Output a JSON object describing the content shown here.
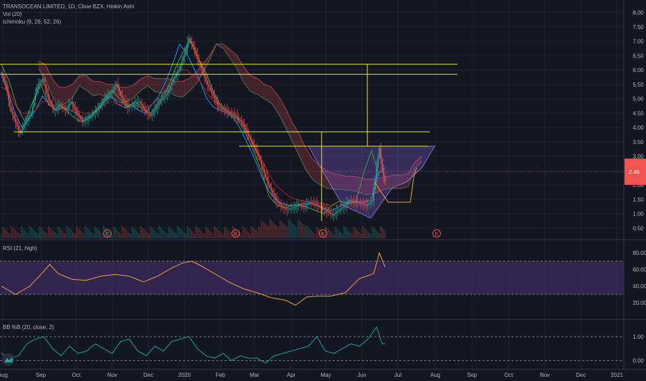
{
  "header": {
    "symbol_line": "TRANSOCEAN LIMITED, 1D, Cboe BZX, Heikin Ashi",
    "vol_label": "Vol (20)",
    "ichimoku_label": "Ichimoku (9, 26, 52, 26)"
  },
  "panes": {
    "rsi_label": "RSI (21, high)",
    "bb_label": "BB %B (20, close, 2)"
  },
  "colors": {
    "background": "#131722",
    "grid": "#1e222d",
    "up": "#26a69a",
    "down": "#ef5350",
    "yellow_lines": "#e8e83c",
    "rsi_line": "#f7a43b",
    "rsi_band": "#4a2f73",
    "bbp_line": "#22a0a4",
    "price_tag": "#f05350"
  },
  "chart_data": [
    {
      "type": "candlestick",
      "series_name": "TRANSOCEAN LIMITED, 1D, Cboe BZX, Heikin Ashi",
      "x_tick_labels": [
        "Aug",
        "Sep",
        "Oct",
        "Nov",
        "Dec",
        "2020",
        "Feb",
        "Mar",
        "Apr",
        "May",
        "Jun",
        "Jul",
        "Aug",
        "Sep",
        "Oct",
        "Nov",
        "Dec",
        "2021"
      ],
      "y_tick_labels": [
        "0.50",
        "1.00",
        "1.50",
        "2.00",
        "2.50",
        "3.00",
        "3.50",
        "4.00",
        "4.50",
        "5.00",
        "5.50",
        "6.00",
        "6.50",
        "7.00",
        "7.50",
        "8.00"
      ],
      "ylim": [
        0.25,
        8.25
      ],
      "price_anchor_points": [
        [
          0,
          5.9
        ],
        [
          3,
          5.5
        ],
        [
          6,
          4.7
        ],
        [
          9,
          4.3
        ],
        [
          13,
          3.8
        ],
        [
          17,
          4.2
        ],
        [
          21,
          4.5
        ],
        [
          25,
          5.4
        ],
        [
          29,
          5.7
        ],
        [
          33,
          5.0
        ],
        [
          37,
          4.6
        ],
        [
          41,
          4.8
        ],
        [
          45,
          4.6
        ],
        [
          49,
          4.9
        ],
        [
          53,
          4.5
        ],
        [
          57,
          4.2
        ],
        [
          61,
          4.3
        ],
        [
          65,
          4.5
        ],
        [
          69,
          4.7
        ],
        [
          73,
          5.0
        ],
        [
          77,
          5.2
        ],
        [
          81,
          5.5
        ],
        [
          85,
          5.0
        ],
        [
          89,
          4.7
        ],
        [
          93,
          4.8
        ],
        [
          97,
          4.9
        ],
        [
          101,
          4.6
        ],
        [
          105,
          4.4
        ],
        [
          109,
          4.7
        ],
        [
          113,
          5.0
        ],
        [
          117,
          5.2
        ],
        [
          121,
          5.7
        ],
        [
          125,
          6.0
        ],
        [
          129,
          6.6
        ],
        [
          132,
          7.1
        ],
        [
          135,
          6.8
        ],
        [
          138,
          6.4
        ],
        [
          141,
          6.0
        ],
        [
          145,
          5.5
        ],
        [
          149,
          5.1
        ],
        [
          153,
          4.7
        ],
        [
          157,
          4.6
        ],
        [
          161,
          4.5
        ],
        [
          165,
          4.4
        ],
        [
          169,
          4.2
        ],
        [
          173,
          3.8
        ],
        [
          177,
          3.4
        ],
        [
          181,
          3.0
        ],
        [
          185,
          2.4
        ],
        [
          189,
          1.9
        ],
        [
          193,
          1.5
        ],
        [
          197,
          1.25
        ],
        [
          201,
          1.15
        ],
        [
          205,
          1.2
        ],
        [
          209,
          1.3
        ],
        [
          213,
          1.25
        ],
        [
          217,
          1.4
        ],
        [
          221,
          1.35
        ],
        [
          225,
          1.2
        ],
        [
          229,
          1.1
        ],
        [
          233,
          0.95
        ],
        [
          237,
          1.1
        ],
        [
          241,
          1.25
        ],
        [
          245,
          1.45
        ],
        [
          249,
          1.4
        ],
        [
          253,
          1.35
        ],
        [
          257,
          1.3
        ],
        [
          261,
          1.45
        ],
        [
          264,
          2.6
        ],
        [
          266,
          3.3
        ],
        [
          268,
          2.5
        ],
        [
          270,
          2.1
        ]
      ],
      "last_price": "2.46",
      "volume_earnings_markers": [
        "E",
        "E",
        "E",
        "E"
      ],
      "horizontal_levels": [
        6.2,
        5.85,
        3.85,
        3.35
      ],
      "cup_projection_anchor_points": [
        [
          216,
          3.35
        ],
        [
          240,
          1.3
        ],
        [
          260,
          0.85
        ],
        [
          275,
          1.9
        ],
        [
          285,
          2.1
        ],
        [
          296,
          2.6
        ],
        [
          305,
          3.35
        ]
      ],
      "ichimoku_line_values": {
        "tenkan": [
          5.8,
          5.2,
          4.5,
          4.0,
          4.3,
          4.6,
          5.1,
          4.8,
          4.6,
          4.7,
          4.6,
          4.5,
          4.3,
          4.4,
          4.6,
          4.9,
          5.1,
          4.8,
          4.7,
          4.8,
          4.6,
          4.5,
          4.8,
          5.1,
          5.6,
          6.2,
          6.9,
          6.6,
          6.1,
          5.6,
          5.0,
          4.7,
          4.6,
          4.5,
          4.3,
          3.9,
          3.4,
          2.9,
          2.3,
          1.8,
          1.5,
          1.35,
          1.3,
          1.3,
          1.35,
          1.35,
          1.3,
          1.2,
          1.1,
          1.2,
          1.35,
          1.45,
          1.4,
          1.4,
          1.5,
          2.4,
          2.6
        ],
        "kijun": [
          5.4,
          5.3,
          4.8,
          4.5,
          4.5,
          4.6,
          4.9,
          4.9,
          4.7,
          4.7,
          4.6,
          4.6,
          4.5,
          4.5,
          4.6,
          4.8,
          4.9,
          4.8,
          4.8,
          4.8,
          4.7,
          4.7,
          4.8,
          5.0,
          5.3,
          5.6,
          6.0,
          6.0,
          5.8,
          5.6,
          5.2,
          4.9,
          4.8,
          4.6,
          4.5,
          4.2,
          3.8,
          3.3,
          2.9,
          2.4,
          2.0,
          1.8,
          1.6,
          1.5,
          1.45,
          1.4,
          1.4,
          1.35,
          1.3,
          1.3,
          1.35,
          1.4,
          1.45,
          1.45,
          1.5,
          1.9,
          2.1
        ],
        "chikou": [
          6.2,
          5.6,
          4.7,
          4.2,
          4.9,
          5.5,
          4.8,
          4.6,
          4.7,
          4.4,
          4.2,
          4.3,
          4.6,
          5.0,
          5.3,
          5.0,
          4.7,
          4.9,
          4.6,
          4.5,
          4.9,
          5.3,
          6.0,
          6.6,
          7.0,
          6.4,
          5.9,
          5.2,
          4.7,
          4.5,
          4.3,
          3.8,
          3.2,
          2.5,
          1.6,
          1.3,
          1.2,
          1.3,
          1.3,
          1.2,
          1.1,
          1.0,
          1.3,
          1.45,
          1.35,
          1.4,
          2.4,
          3.2,
          2.3
        ]
      }
    },
    {
      "type": "line",
      "series_name": "RSI (21, high)",
      "y_tick_labels": [
        "20.00",
        "40.00",
        "60.00",
        "80.00"
      ],
      "ylim": [
        10,
        90
      ],
      "bands": [
        30,
        70
      ],
      "value_anchor_points": [
        [
          0,
          40
        ],
        [
          10,
          30
        ],
        [
          20,
          40
        ],
        [
          30,
          58
        ],
        [
          34,
          66
        ],
        [
          40,
          55
        ],
        [
          50,
          48
        ],
        [
          60,
          47
        ],
        [
          70,
          52
        ],
        [
          80,
          54
        ],
        [
          90,
          52
        ],
        [
          100,
          45
        ],
        [
          110,
          52
        ],
        [
          120,
          62
        ],
        [
          128,
          68
        ],
        [
          134,
          70
        ],
        [
          140,
          65
        ],
        [
          150,
          55
        ],
        [
          160,
          45
        ],
        [
          170,
          37
        ],
        [
          180,
          32
        ],
        [
          190,
          26
        ],
        [
          200,
          23
        ],
        [
          207,
          17
        ],
        [
          215,
          27
        ],
        [
          222,
          28
        ],
        [
          232,
          28
        ],
        [
          242,
          32
        ],
        [
          252,
          49
        ],
        [
          262,
          55
        ],
        [
          266,
          80
        ],
        [
          270,
          63
        ]
      ]
    },
    {
      "type": "line",
      "series_name": "BB %B (20, close, 2)",
      "y_tick_labels": [
        "0.00",
        "1.00"
      ],
      "ylim": [
        -0.2,
        1.5
      ],
      "bands": [
        0,
        1
      ],
      "value_anchor_points": [
        [
          0,
          0.3
        ],
        [
          6,
          0.1
        ],
        [
          12,
          0.2
        ],
        [
          18,
          0.7
        ],
        [
          24,
          0.9
        ],
        [
          30,
          1.0
        ],
        [
          36,
          0.5
        ],
        [
          42,
          0.2
        ],
        [
          48,
          0.6
        ],
        [
          54,
          0.3
        ],
        [
          60,
          0.4
        ],
        [
          66,
          0.7
        ],
        [
          72,
          0.5
        ],
        [
          78,
          0.3
        ],
        [
          84,
          0.8
        ],
        [
          90,
          0.9
        ],
        [
          96,
          0.4
        ],
        [
          102,
          0.2
        ],
        [
          108,
          0.6
        ],
        [
          114,
          0.4
        ],
        [
          120,
          0.8
        ],
        [
          126,
          0.9
        ],
        [
          132,
          1.0
        ],
        [
          138,
          0.5
        ],
        [
          144,
          0.2
        ],
        [
          150,
          0.1
        ],
        [
          156,
          0.3
        ],
        [
          162,
          0.0
        ],
        [
          168,
          0.2
        ],
        [
          174,
          0.1
        ],
        [
          180,
          0.1
        ],
        [
          186,
          -0.1
        ],
        [
          192,
          0.2
        ],
        [
          198,
          0.3
        ],
        [
          204,
          0.4
        ],
        [
          210,
          0.5
        ],
        [
          216,
          0.6
        ],
        [
          222,
          1.0
        ],
        [
          228,
          0.4
        ],
        [
          234,
          0.3
        ],
        [
          240,
          0.5
        ],
        [
          246,
          0.7
        ],
        [
          252,
          0.6
        ],
        [
          258,
          0.9
        ],
        [
          264,
          1.4
        ],
        [
          268,
          0.7
        ]
      ]
    }
  ]
}
